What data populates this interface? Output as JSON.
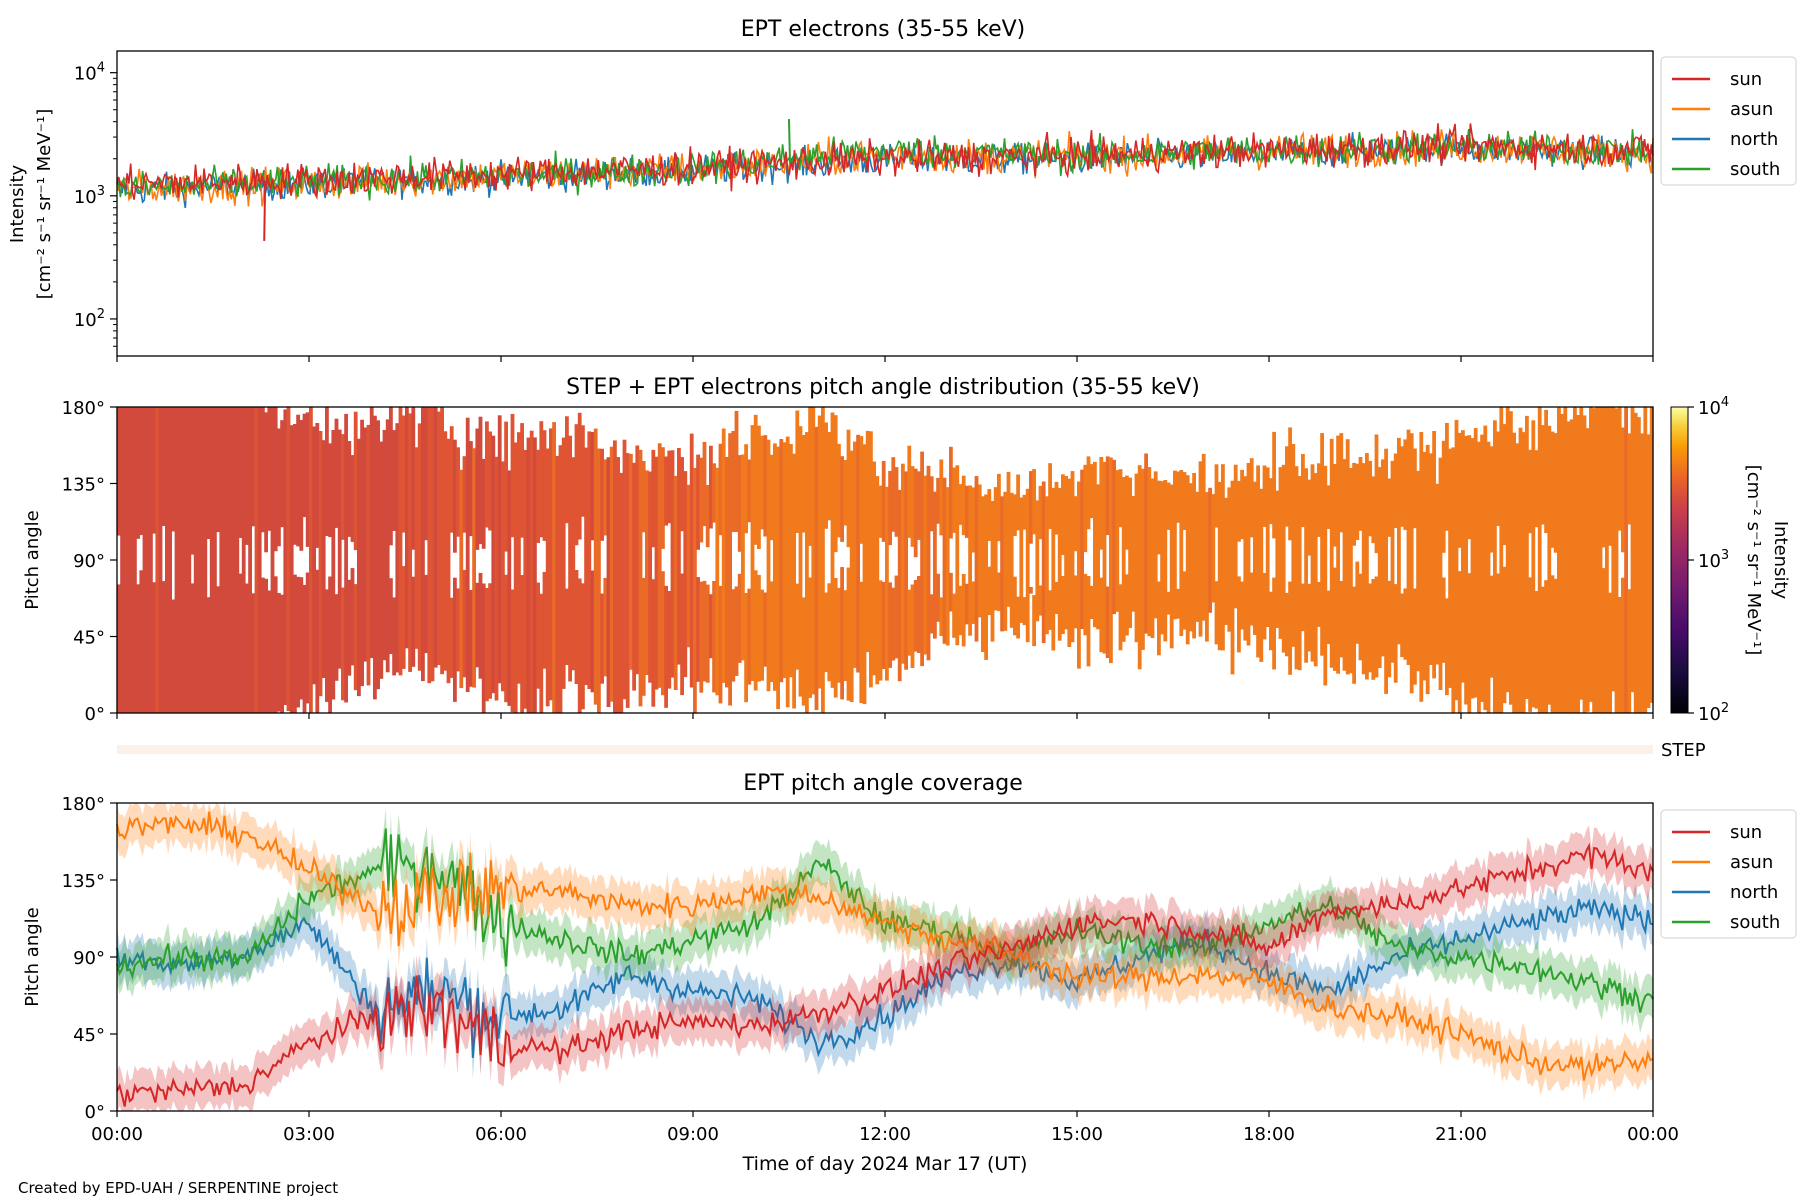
{
  "figure": {
    "credit": "Created by EPD-UAH / SERPENTINE project",
    "x_label": "Time of day 2024 Mar 17 (UT)",
    "x_ticks": [
      "00:00",
      "03:00",
      "06:00",
      "09:00",
      "12:00",
      "15:00",
      "18:00",
      "21:00",
      "00:00"
    ]
  },
  "colors": {
    "sun": "#d62728",
    "asun": "#ff7f0e",
    "north": "#1f77b4",
    "south": "#2ca02c",
    "step_strip": "#fdf0e8"
  },
  "chart_data": [
    {
      "type": "line",
      "title": "EPT electrons (35-55 keV)",
      "ylabel": "Intensity",
      "ylabel_units": "[cm⁻² s⁻¹ sr⁻¹ MeV⁻¹]",
      "yscale": "log",
      "ylim": [
        50,
        15000
      ],
      "y_ticks": [
        {
          "base": "10",
          "exp": "2"
        },
        {
          "base": "10",
          "exp": "3"
        },
        {
          "base": "10",
          "exp": "4"
        }
      ],
      "x": [
        0,
        3,
        6,
        9,
        12,
        15,
        18,
        21,
        24
      ],
      "legend": [
        "sun",
        "asun",
        "north",
        "south"
      ],
      "legend_position": "outside right",
      "series": [
        {
          "name": "sun",
          "values": [
            1250,
            1350,
            1500,
            1700,
            2000,
            2100,
            2350,
            2550,
            2350
          ],
          "noise": 0.25
        },
        {
          "name": "asun",
          "values": [
            1150,
            1250,
            1450,
            1650,
            2150,
            2100,
            2300,
            2500,
            2250
          ],
          "noise": 0.25
        },
        {
          "name": "north",
          "values": [
            1100,
            1250,
            1400,
            1600,
            1950,
            2000,
            2200,
            2450,
            2150
          ],
          "noise": 0.22
        },
        {
          "name": "south",
          "values": [
            1150,
            1300,
            1450,
            1650,
            2350,
            2100,
            2350,
            2500,
            2300
          ],
          "noise": 0.24
        }
      ],
      "notable": [
        {
          "series": "south",
          "x": 10.5,
          "y": 4200
        },
        {
          "series": "sun",
          "x": 2.3,
          "y": 430
        }
      ]
    },
    {
      "type": "heatmap",
      "title": "STEP + EPT electrons pitch angle distribution (35-55 keV)",
      "ylabel": "Pitch angle",
      "y_ticks": [
        "0°",
        "45°",
        "90°",
        "135°",
        "180°"
      ],
      "ylim": [
        0,
        180
      ],
      "colorbar": {
        "label": "Intensity",
        "units": "[cm⁻² s⁻¹ sr⁻¹ MeV⁻¹]",
        "scale": "log",
        "range": [
          100,
          10000
        ],
        "colormap": "inferno",
        "ticks": [
          {
            "base": "10",
            "exp": "2"
          },
          {
            "base": "10",
            "exp": "3"
          },
          {
            "base": "10",
            "exp": "4"
          }
        ]
      },
      "intensity_profile": {
        "x": [
          0,
          3,
          6,
          9,
          10.5,
          12,
          15,
          18,
          21,
          24
        ],
        "values": [
          1250,
          1350,
          1500,
          1700,
          2300,
          2000,
          2100,
          2350,
          2550,
          2350
        ]
      },
      "step_label": "STEP"
    },
    {
      "type": "line",
      "title": "EPT pitch angle coverage",
      "ylabel": "Pitch angle",
      "y_ticks": [
        "0°",
        "45°",
        "90°",
        "135°",
        "180°"
      ],
      "ylim": [
        0,
        180
      ],
      "legend": [
        "sun",
        "asun",
        "north",
        "south"
      ],
      "legend_position": "outside right",
      "x": [
        0,
        1,
        2,
        3,
        4,
        5,
        6,
        7,
        8,
        9,
        10,
        11,
        12,
        13,
        14,
        15,
        16,
        17,
        18,
        19,
        20,
        21,
        22,
        23,
        24
      ],
      "series": [
        {
          "name": "sun",
          "values": [
            10,
            12,
            15,
            40,
            55,
            60,
            40,
            35,
            48,
            52,
            50,
            58,
            70,
            85,
            95,
            110,
            112,
            105,
            95,
            118,
            120,
            130,
            140,
            150,
            140
          ]
        },
        {
          "name": "asun",
          "values": [
            165,
            168,
            162,
            140,
            120,
            125,
            130,
            128,
            120,
            120,
            128,
            125,
            110,
            100,
            92,
            78,
            78,
            80,
            75,
            60,
            55,
            45,
            30,
            25,
            30
          ]
        },
        {
          "name": "north",
          "values": [
            90,
            85,
            92,
            110,
            60,
            70,
            55,
            60,
            80,
            70,
            65,
            40,
            55,
            80,
            88,
            75,
            90,
            100,
            80,
            70,
            90,
            100,
            110,
            118,
            112
          ]
        },
        {
          "name": "south",
          "values": [
            85,
            90,
            88,
            125,
            140,
            145,
            110,
            100,
            90,
            100,
            110,
            145,
            110,
            105,
            92,
            105,
            98,
            95,
            110,
            120,
            95,
            90,
            85,
            75,
            65
          ]
        }
      ],
      "band_halfwidth": 12
    }
  ]
}
